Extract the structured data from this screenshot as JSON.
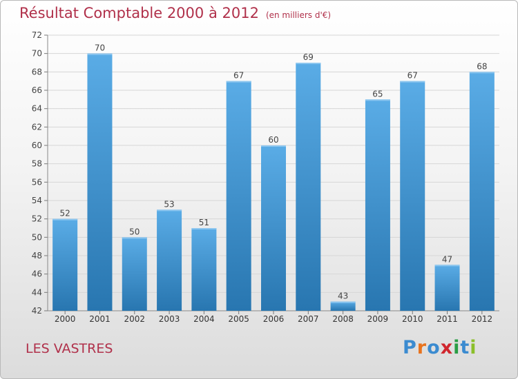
{
  "header": {
    "title": "Résultat Comptable 2000 à 2012",
    "unit": "(en milliers d'€)"
  },
  "footer": {
    "commune": "LES VASTRES",
    "logo": "Proxiti"
  },
  "colors": {
    "title": "#b0304a",
    "bar_light": "#5aace6",
    "bar_dark": "#2876b0",
    "logo_letters": [
      "#3b8bd0",
      "#e8731e",
      "#3b8bd0",
      "#d0262e",
      "#2a9d45",
      "#3b8bd0",
      "#8bbf2a"
    ]
  },
  "chart_data": {
    "type": "bar",
    "title": "Résultat Comptable 2000 à 2012",
    "xlabel": "",
    "ylabel": "",
    "categories": [
      "2000",
      "2001",
      "2002",
      "2003",
      "2004",
      "2005",
      "2006",
      "2007",
      "2008",
      "2009",
      "2010",
      "2011",
      "2012"
    ],
    "values": [
      52,
      70,
      50,
      53,
      51,
      67,
      60,
      69,
      43,
      65,
      67,
      47,
      68
    ],
    "ylim": [
      42,
      72
    ],
    "yticks": [
      42,
      44,
      46,
      48,
      50,
      52,
      54,
      56,
      58,
      60,
      62,
      64,
      66,
      68,
      70,
      72
    ],
    "grid": true,
    "legend": "none"
  }
}
